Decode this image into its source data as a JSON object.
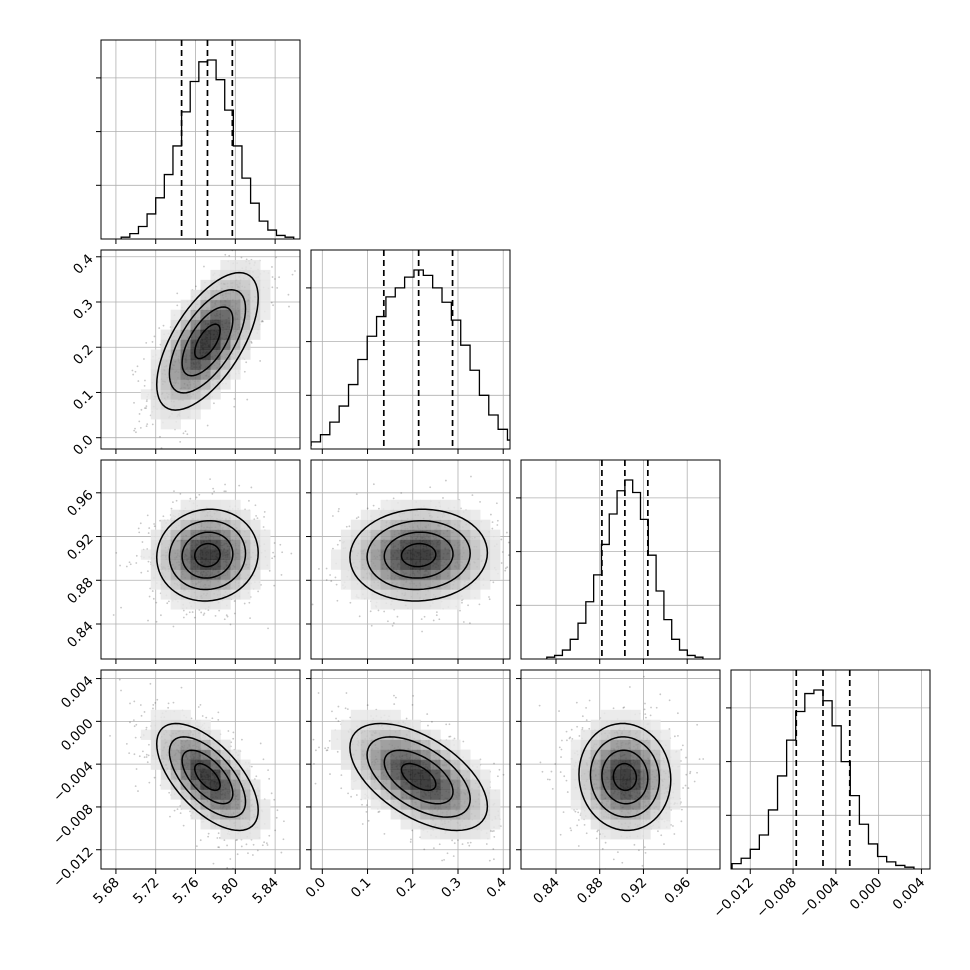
{
  "chart_data": {
    "type": "corner",
    "parameters": [
      {
        "index": 0,
        "range": [
          5.665,
          5.865
        ],
        "ticks": [
          "5.68",
          "5.72",
          "5.76",
          "5.80",
          "5.84"
        ],
        "tick_values": [
          5.68,
          5.72,
          5.76,
          5.8,
          5.84
        ],
        "quantiles": [
          5.746,
          5.772,
          5.797
        ]
      },
      {
        "index": 1,
        "range": [
          -0.025,
          0.415
        ],
        "ticks": [
          "0.0",
          "0.1",
          "0.2",
          "0.3",
          "0.4"
        ],
        "tick_values": [
          0.0,
          0.1,
          0.2,
          0.3,
          0.4
        ],
        "quantiles": [
          0.136,
          0.213,
          0.288
        ]
      },
      {
        "index": 2,
        "range": [
          0.808,
          0.99
        ],
        "ticks": [
          "0.84",
          "0.88",
          "0.92",
          "0.96"
        ],
        "tick_values": [
          0.84,
          0.88,
          0.92,
          0.96
        ],
        "quantiles": [
          0.882,
          0.903,
          0.924
        ]
      },
      {
        "index": 3,
        "range": [
          -0.0138,
          0.0048
        ],
        "ticks": [
          "−0.012",
          "−0.008",
          "−0.004",
          "0.000",
          "0.004"
        ],
        "tick_values": [
          -0.012,
          -0.008,
          -0.004,
          0.0,
          0.004
        ],
        "quantiles": [
          -0.0077,
          -0.0052,
          -0.0027
        ]
      }
    ],
    "histograms": [
      {
        "param": 0,
        "counts": [
          0.01,
          0.03,
          0.07,
          0.14,
          0.23,
          0.36,
          0.52,
          0.71,
          0.88,
          0.99,
          1.0,
          0.89,
          0.72,
          0.52,
          0.34,
          0.2,
          0.1,
          0.05,
          0.02,
          0.01
        ]
      },
      {
        "param": 1,
        "counts": [
          0.02,
          0.04,
          0.08,
          0.15,
          0.24,
          0.36,
          0.5,
          0.63,
          0.74,
          0.85,
          0.9,
          0.96,
          1.0,
          0.97,
          0.9,
          0.82,
          0.72,
          0.58,
          0.44,
          0.3,
          0.19,
          0.11,
          0.05,
          0.03,
          0.01
        ]
      },
      {
        "param": 2,
        "counts": [
          0.01,
          0.02,
          0.05,
          0.11,
          0.2,
          0.32,
          0.47,
          0.64,
          0.81,
          0.94,
          1.0,
          0.93,
          0.78,
          0.58,
          0.38,
          0.22,
          0.11,
          0.05,
          0.02,
          0.01
        ]
      },
      {
        "param": 3,
        "counts": [
          0.03,
          0.06,
          0.11,
          0.19,
          0.33,
          0.52,
          0.72,
          0.88,
          0.98,
          1.0,
          0.94,
          0.8,
          0.6,
          0.41,
          0.25,
          0.14,
          0.07,
          0.04,
          0.02,
          0.01
        ]
      }
    ],
    "correlations": {
      "1-0": 0.63,
      "2-0": 0.05,
      "2-1": 0.05,
      "3-0": -0.62,
      "3-1": -0.55,
      "3-2": -0.05
    },
    "style": {
      "line": "#000000",
      "grid": "#b0b0b0",
      "points": "#444444"
    }
  }
}
